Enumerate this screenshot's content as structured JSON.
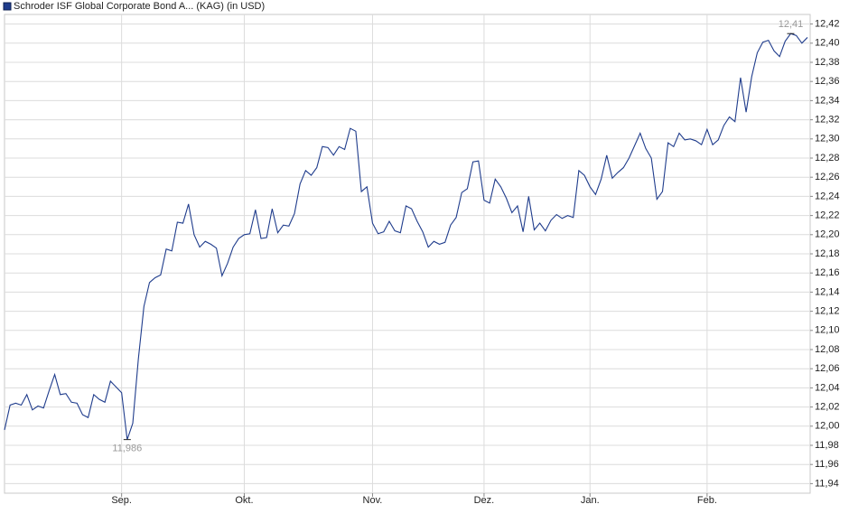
{
  "chart_data": {
    "type": "line",
    "title": "Schroder ISF Global Corporate Bond A... (KAG) (in USD)",
    "series": [
      {
        "name": "Schroder ISF Global Corporate Bond A... (KAG) (in USD)",
        "color": "#1f3c8c",
        "values": [
          11.996,
          12.022,
          12.024,
          12.022,
          12.033,
          12.017,
          12.021,
          12.019,
          12.037,
          12.054,
          12.033,
          12.034,
          12.025,
          12.024,
          12.012,
          12.009,
          12.033,
          12.028,
          12.025,
          12.047,
          12.041,
          12.035,
          11.986,
          12.003,
          12.07,
          12.125,
          12.15,
          12.155,
          12.158,
          12.185,
          12.183,
          12.213,
          12.212,
          12.232,
          12.2,
          12.187,
          12.193,
          12.19,
          12.186,
          12.157,
          12.17,
          12.187,
          12.196,
          12.2,
          12.201,
          12.226,
          12.196,
          12.197,
          12.227,
          12.202,
          12.21,
          12.209,
          12.222,
          12.253,
          12.267,
          12.262,
          12.27,
          12.292,
          12.291,
          12.283,
          12.292,
          12.289,
          12.311,
          12.308,
          12.245,
          12.25,
          12.212,
          12.201,
          12.203,
          12.214,
          12.204,
          12.202,
          12.23,
          12.227,
          12.214,
          12.203,
          12.187,
          12.193,
          12.19,
          12.192,
          12.21,
          12.218,
          12.244,
          12.248,
          12.276,
          12.277,
          12.236,
          12.233,
          12.258,
          12.25,
          12.238,
          12.223,
          12.23,
          12.203,
          12.24,
          12.205,
          12.212,
          12.204,
          12.215,
          12.221,
          12.217,
          12.22,
          12.218,
          12.267,
          12.262,
          12.25,
          12.242,
          12.258,
          12.283,
          12.259,
          12.265,
          12.27,
          12.28,
          12.293,
          12.306,
          12.29,
          12.28,
          12.237,
          12.245,
          12.296,
          12.292,
          12.306,
          12.299,
          12.3,
          12.298,
          12.294,
          12.31,
          12.294,
          12.299,
          12.314,
          12.323,
          12.318,
          12.364,
          12.328,
          12.365,
          12.39,
          12.401,
          12.403,
          12.392,
          12.386,
          12.402,
          12.41,
          12.408,
          12.4,
          12.406
        ]
      }
    ],
    "xlim": [
      0,
      144
    ],
    "xticks": [
      {
        "value": 21,
        "label": "Sep."
      },
      {
        "value": 43,
        "label": "Okt."
      },
      {
        "value": 66,
        "label": "Nov."
      },
      {
        "value": 86,
        "label": "Dez."
      },
      {
        "value": 105,
        "label": "Jan."
      },
      {
        "value": 126,
        "label": "Feb."
      }
    ],
    "ylim": [
      11.93,
      12.43
    ],
    "yticks": [
      {
        "value": 11.94,
        "label": "11,94"
      },
      {
        "value": 11.96,
        "label": "11,96"
      },
      {
        "value": 11.98,
        "label": "11,98"
      },
      {
        "value": 12.0,
        "label": "12,00"
      },
      {
        "value": 12.02,
        "label": "12,02"
      },
      {
        "value": 12.04,
        "label": "12,04"
      },
      {
        "value": 12.06,
        "label": "12,06"
      },
      {
        "value": 12.08,
        "label": "12,08"
      },
      {
        "value": 12.1,
        "label": "12,10"
      },
      {
        "value": 12.12,
        "label": "12,12"
      },
      {
        "value": 12.14,
        "label": "12,14"
      },
      {
        "value": 12.16,
        "label": "12,16"
      },
      {
        "value": 12.18,
        "label": "12,18"
      },
      {
        "value": 12.2,
        "label": "12,20"
      },
      {
        "value": 12.22,
        "label": "12,22"
      },
      {
        "value": 12.24,
        "label": "12,24"
      },
      {
        "value": 12.26,
        "label": "12,26"
      },
      {
        "value": 12.28,
        "label": "12,28"
      },
      {
        "value": 12.3,
        "label": "12,30"
      },
      {
        "value": 12.32,
        "label": "12,32"
      },
      {
        "value": 12.34,
        "label": "12,34"
      },
      {
        "value": 12.36,
        "label": "12,36"
      },
      {
        "value": 12.38,
        "label": "12,38"
      },
      {
        "value": 12.4,
        "label": "12,40"
      },
      {
        "value": 12.42,
        "label": "12,42"
      }
    ],
    "grid": true,
    "annotations": [
      {
        "x": 22,
        "value": 11.986,
        "label": "11,986",
        "position": "below"
      },
      {
        "x": 141,
        "value": 12.41,
        "label": "12,41",
        "position": "above"
      }
    ]
  }
}
